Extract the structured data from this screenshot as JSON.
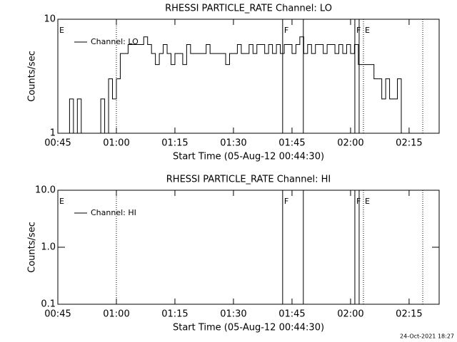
{
  "chart_data": [
    {
      "type": "line",
      "title": "RHESSI PARTICLE_RATE Channel: LO",
      "xlabel": "Start Time (05-Aug-12 00:44:30)",
      "ylabel": "Counts/sec",
      "log_y": true,
      "x": [
        46,
        47,
        48,
        49,
        50,
        51,
        52,
        53,
        54,
        55,
        56,
        57,
        58,
        59,
        60,
        61,
        62,
        63,
        64,
        65,
        66,
        67,
        68,
        69,
        70,
        71,
        72,
        73,
        74,
        75,
        76,
        77,
        78,
        79,
        80,
        81,
        82,
        83,
        84,
        85,
        86,
        87,
        88,
        89,
        90,
        91,
        92,
        93,
        94,
        95,
        96,
        97,
        98,
        99,
        100,
        101,
        102,
        103,
        104,
        105,
        106,
        107,
        108,
        109,
        110,
        111,
        112,
        113,
        114,
        115,
        116,
        117,
        118,
        119,
        120,
        121,
        122,
        123,
        124,
        125,
        126,
        127,
        128,
        129,
        130,
        131,
        132,
        133,
        134
      ],
      "series": [
        {
          "name": "Channel: LO",
          "color": "#000000",
          "values": [
            1,
            1,
            2,
            1,
            2,
            1,
            1,
            1,
            1,
            1,
            2,
            1,
            3,
            2,
            3,
            5,
            5,
            6,
            6,
            6,
            6,
            7,
            6,
            5,
            4,
            5,
            6,
            5,
            4,
            5,
            5,
            4,
            6,
            5,
            5,
            5,
            5,
            6,
            5,
            5,
            5,
            5,
            4,
            5,
            5,
            6,
            5,
            5,
            6,
            5,
            6,
            6,
            5,
            6,
            5,
            6,
            5,
            6,
            6,
            5,
            6,
            7,
            5,
            6,
            5,
            6,
            6,
            5,
            6,
            6,
            5,
            6,
            5,
            6,
            5,
            6,
            4,
            4,
            4,
            4,
            3,
            3,
            2,
            3,
            2,
            2,
            3,
            1,
            1
          ]
        }
      ],
      "xlim": [
        45,
        142.7
      ],
      "ylim": [
        1,
        10
      ],
      "xticks": [
        {
          "value": 45,
          "label": "00:45"
        },
        {
          "value": 60,
          "label": "01:00"
        },
        {
          "value": 75,
          "label": "01:15"
        },
        {
          "value": 90,
          "label": "01:30"
        },
        {
          "value": 105,
          "label": "01:45"
        },
        {
          "value": 120,
          "label": "02:00"
        },
        {
          "value": 135,
          "label": "02:15"
        }
      ],
      "yticks": [
        1,
        10
      ],
      "markers": [
        {
          "x": 60,
          "style": "dotted"
        },
        {
          "x": 102.6,
          "style": "solid"
        },
        {
          "x": 107.9,
          "style": "solid"
        },
        {
          "x": 121.1,
          "style": "solid"
        },
        {
          "x": 122.2,
          "style": "solid"
        },
        {
          "x": 123.3,
          "style": "dotted"
        },
        {
          "x": 138.5,
          "style": "dotted"
        }
      ],
      "marker_labels": [
        {
          "x": 45,
          "text": "E"
        },
        {
          "x": 102.6,
          "text": "F"
        },
        {
          "x": 121.1,
          "text": "F"
        },
        {
          "x": 123.3,
          "text": "E"
        }
      ]
    },
    {
      "type": "line",
      "title": "RHESSI PARTICLE_RATE Channel: HI",
      "xlabel": "Start Time (05-Aug-12 00:44:30)",
      "ylabel": "Counts/sec",
      "log_y": true,
      "x": [],
      "series": [
        {
          "name": "Channel: HI",
          "color": "#000000",
          "values": []
        }
      ],
      "xlim": [
        45,
        142.7
      ],
      "ylim": [
        0.1,
        10
      ],
      "xticks": [
        {
          "value": 45,
          "label": "00:45"
        },
        {
          "value": 60,
          "label": "01:00"
        },
        {
          "value": 75,
          "label": "01:15"
        },
        {
          "value": 90,
          "label": "01:30"
        },
        {
          "value": 105,
          "label": "01:45"
        },
        {
          "value": 120,
          "label": "02:00"
        },
        {
          "value": 135,
          "label": "02:15"
        }
      ],
      "yticks": [
        {
          "value": 0.1,
          "label": "0.1"
        },
        {
          "value": 1,
          "label": "1.0"
        },
        {
          "value": 10,
          "label": "10.0"
        }
      ],
      "markers": [
        {
          "x": 60,
          "style": "dotted"
        },
        {
          "x": 102.6,
          "style": "solid"
        },
        {
          "x": 107.9,
          "style": "solid"
        },
        {
          "x": 121.1,
          "style": "solid"
        },
        {
          "x": 122.2,
          "style": "solid"
        },
        {
          "x": 123.3,
          "style": "dotted"
        },
        {
          "x": 138.5,
          "style": "dotted"
        }
      ],
      "marker_labels": [
        {
          "x": 45,
          "text": "E"
        },
        {
          "x": 102.6,
          "text": "F"
        },
        {
          "x": 121.1,
          "text": "F"
        },
        {
          "x": 123.3,
          "text": "E"
        }
      ]
    }
  ],
  "footer": "24-Oct-2021 18:27"
}
